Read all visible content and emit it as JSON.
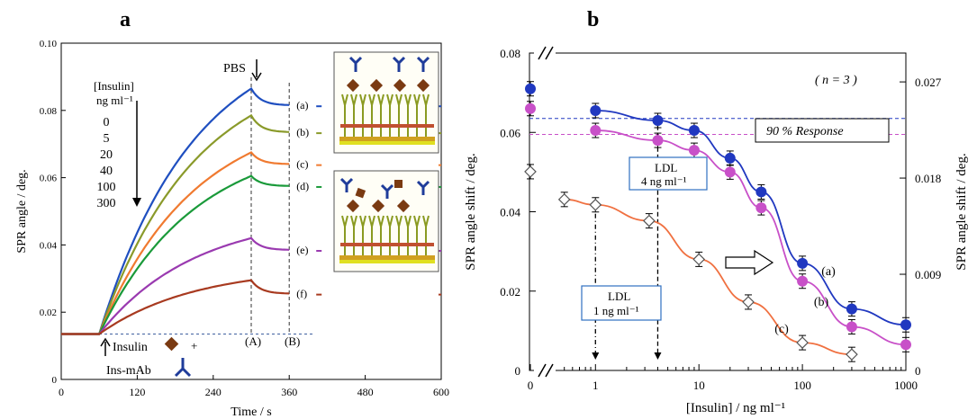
{
  "panels": {
    "a": "a",
    "b": "b"
  },
  "chart_data": [
    {
      "type": "line",
      "panel": "a",
      "xlabel": "Time / s",
      "ylabel": "SPR angle / deg.",
      "xlim": [
        0,
        600
      ],
      "ylim": [
        0,
        0.1
      ],
      "xticks": [
        "0",
        "120",
        "240",
        "360",
        "480",
        "600"
      ],
      "yticks": [
        "0",
        "0.02",
        "0.04",
        "0.06",
        "0.08",
        "0.10"
      ],
      "legend_title": [
        "[Insulin]",
        "ng ml⁻¹"
      ],
      "legend_values": [
        "0",
        "5",
        "20",
        "40",
        "100",
        "300"
      ],
      "annotations": {
        "pbs": "PBS",
        "A": "(A)",
        "B": "(B)",
        "insulin": "Insulin",
        "insmab": "Ins-mAb",
        "plus": "+"
      },
      "baseline": 0.0135,
      "injection_time": 60,
      "pbs_time": 300,
      "wash_time": 360,
      "series": [
        {
          "name": "(a)",
          "color": "#1f4fc0",
          "peak": 0.0865,
          "end": 0.0815
        },
        {
          "name": "(b)",
          "color": "#8a9a2a",
          "peak": 0.0785,
          "end": 0.0735
        },
        {
          "name": "(c)",
          "color": "#f07a30",
          "peak": 0.0675,
          "end": 0.064
        },
        {
          "name": "(d)",
          "color": "#1a9a3a",
          "peak": 0.0605,
          "end": 0.0575
        },
        {
          "name": "(e)",
          "color": "#9a3ab0",
          "peak": 0.042,
          "end": 0.0385
        },
        {
          "name": "(f)",
          "color": "#a83a20",
          "peak": 0.0295,
          "end": 0.0255
        }
      ]
    },
    {
      "type": "scatter",
      "panel": "b",
      "xlabel": "[Insulin] / ng ml⁻¹",
      "ylabel_left": "SPR angle shift / deg.",
      "ylabel_right": "SPR angle shift / deg.",
      "ylim_left": [
        0,
        0.08
      ],
      "ylim_right": [
        0,
        0.0297
      ],
      "xscale": "log",
      "xlim": [
        0.3,
        1000
      ],
      "xticks": [
        "0",
        "1",
        "10",
        "100",
        "1000"
      ],
      "yticks_left": [
        "0",
        "0.02",
        "0.04",
        "0.06",
        "0.08"
      ],
      "yticks_right": [
        "0",
        "0.009",
        "0.018",
        "0.027"
      ],
      "annotations": {
        "n": "( n = 3 )",
        "response": "90 % Response",
        "ldl4_line1": "LDL",
        "ldl4_line2": "4 ng ml⁻¹",
        "ldl1_line1": "LDL",
        "ldl1_line2": "1 ng ml⁻¹"
      },
      "response_levels": [
        0.0635,
        0.0595
      ],
      "ldl_x": [
        1,
        4
      ],
      "series": [
        {
          "name": "(a)",
          "color": "#2038c0",
          "marker": "circle",
          "axis": "left",
          "zero_value": 0.071,
          "x": [
            1,
            4,
            9,
            20,
            40,
            100,
            300,
            1000
          ],
          "y": [
            0.0655,
            0.063,
            0.0605,
            0.0535,
            0.045,
            0.027,
            0.0155,
            0.0115
          ]
        },
        {
          "name": "(b)",
          "color": "#c850c8",
          "marker": "circle",
          "axis": "left",
          "zero_value": 0.066,
          "x": [
            1,
            4,
            9,
            20,
            40,
            100,
            300,
            1000
          ],
          "y": [
            0.0605,
            0.058,
            0.0555,
            0.05,
            0.041,
            0.0225,
            0.011,
            0.0065
          ]
        },
        {
          "name": "(c)",
          "color": "#707070",
          "marker": "diamond",
          "axis": "right",
          "zero_value": 0.0186,
          "x": [
            0.5,
            1,
            3.3,
            10,
            30,
            100,
            300
          ],
          "y": [
            0.016,
            0.0155,
            0.014,
            0.0104,
            0.0064,
            0.0026,
            0.0015
          ]
        }
      ]
    }
  ]
}
